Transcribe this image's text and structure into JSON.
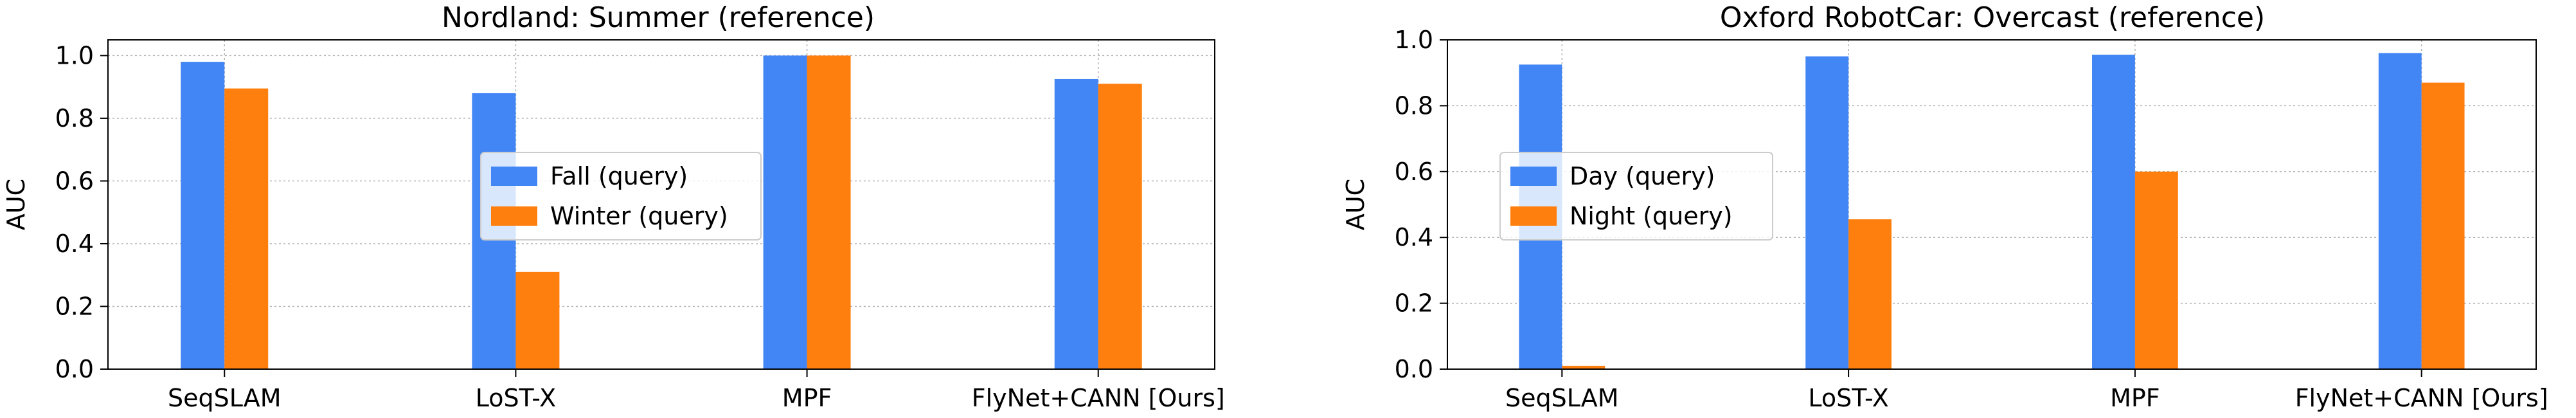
{
  "chart_data": [
    {
      "type": "bar",
      "title": "Nordland: Summer (reference)",
      "xlabel": "",
      "ylabel": "AUC",
      "ylim": [
        0,
        1.05
      ],
      "yticks": [
        0.0,
        0.2,
        0.4,
        0.6,
        0.8,
        1.0
      ],
      "ytick_labels": [
        "0.0",
        "0.2",
        "0.4",
        "0.6",
        "0.8",
        "1.0"
      ],
      "grid": true,
      "legend_position": "center",
      "categories": [
        "SeqSLAM",
        "LoST-X",
        "MPF",
        "FlyNet+CANN [Ours]"
      ],
      "series": [
        {
          "name": "Fall (query)",
          "color": "#4285f4",
          "values": [
            0.98,
            0.88,
            1.0,
            0.925
          ]
        },
        {
          "name": "Winter (query)",
          "color": "#ff7f0e",
          "values": [
            0.895,
            0.31,
            1.0,
            0.91
          ]
        }
      ]
    },
    {
      "type": "bar",
      "title": "Oxford RobotCar: Overcast (reference)",
      "xlabel": "",
      "ylabel": "AUC",
      "ylim": [
        0,
        1.0
      ],
      "yticks": [
        0.0,
        0.2,
        0.4,
        0.6,
        0.8,
        1.0
      ],
      "ytick_labels": [
        "0.0",
        "0.2",
        "0.4",
        "0.6",
        "0.8",
        "1.0"
      ],
      "grid": true,
      "legend_position": "upper-left",
      "categories": [
        "SeqSLAM",
        "LoST-X",
        "MPF",
        "FlyNet+CANN [Ours]"
      ],
      "series": [
        {
          "name": "Day (query)",
          "color": "#4285f4",
          "values": [
            0.925,
            0.95,
            0.955,
            0.96
          ]
        },
        {
          "name": "Night (query)",
          "color": "#ff7f0e",
          "values": [
            0.01,
            0.455,
            0.6,
            0.87
          ]
        }
      ]
    }
  ]
}
